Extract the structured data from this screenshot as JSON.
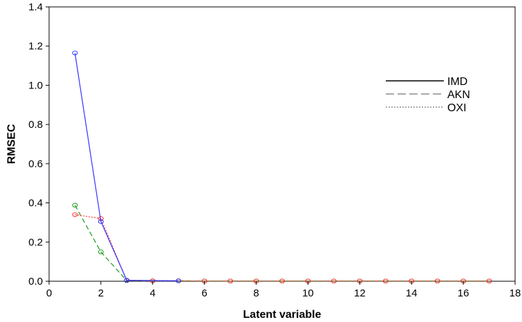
{
  "chart_data": {
    "type": "line",
    "title": "",
    "xlabel": "Latent variable",
    "ylabel": "RMSEC",
    "xlim": [
      0,
      18
    ],
    "ylim": [
      0,
      1.4
    ],
    "xticks": [
      0,
      2,
      4,
      6,
      8,
      10,
      12,
      14,
      16,
      18
    ],
    "yticks": [
      0.0,
      0.2,
      0.4,
      0.6,
      0.8,
      1.0,
      1.2,
      1.4
    ],
    "ytick_labels": [
      "0.0",
      "0.2",
      "0.4",
      "0.6",
      "0.8",
      "1.0",
      "1.2",
      "1.4"
    ],
    "grid": false,
    "legend_position": "top-right",
    "legend": [
      {
        "name": "IMD",
        "line_style": "solid",
        "color": "#000000"
      },
      {
        "name": "AKN",
        "line_style": "dashed",
        "color": "#777777"
      },
      {
        "name": "OXI",
        "line_style": "dotted",
        "color": "#777777"
      }
    ],
    "series": [
      {
        "name": "IMD",
        "color": "#3333ff",
        "line_style": "solid",
        "points": [
          [
            1,
            1.165
          ],
          [
            2,
            0.305
          ],
          [
            3,
            0.005
          ],
          [
            5,
            0.002
          ]
        ]
      },
      {
        "name": "AKN",
        "color": "#1a9a1a",
        "line_style": "dashed",
        "points": [
          [
            1,
            0.388
          ],
          [
            2,
            0.15
          ],
          [
            3,
            0.003
          ],
          [
            4,
            0.002
          ],
          [
            5,
            0.002
          ],
          [
            6,
            0.001
          ],
          [
            7,
            0.001
          ],
          [
            8,
            0.001
          ],
          [
            9,
            0.001
          ],
          [
            10,
            0.001
          ],
          [
            11,
            0.001
          ],
          [
            12,
            0.001
          ],
          [
            13,
            0.001
          ],
          [
            14,
            0.001
          ],
          [
            15,
            0.001
          ],
          [
            16,
            0.001
          ],
          [
            17,
            0.001
          ]
        ]
      },
      {
        "name": "OXI",
        "color": "#ff3333",
        "line_style": "dotted",
        "points": [
          [
            1,
            0.34
          ],
          [
            2,
            0.32
          ],
          [
            3,
            0.004
          ],
          [
            4,
            0.002
          ],
          [
            5,
            0.002
          ],
          [
            6,
            0.001
          ],
          [
            7,
            0.001
          ],
          [
            8,
            0.001
          ],
          [
            9,
            0.001
          ],
          [
            10,
            0.001
          ],
          [
            11,
            0.001
          ],
          [
            12,
            0.001
          ],
          [
            13,
            0.001
          ],
          [
            14,
            0.001
          ],
          [
            15,
            0.001
          ],
          [
            16,
            0.001
          ],
          [
            17,
            0.001
          ]
        ]
      }
    ]
  }
}
